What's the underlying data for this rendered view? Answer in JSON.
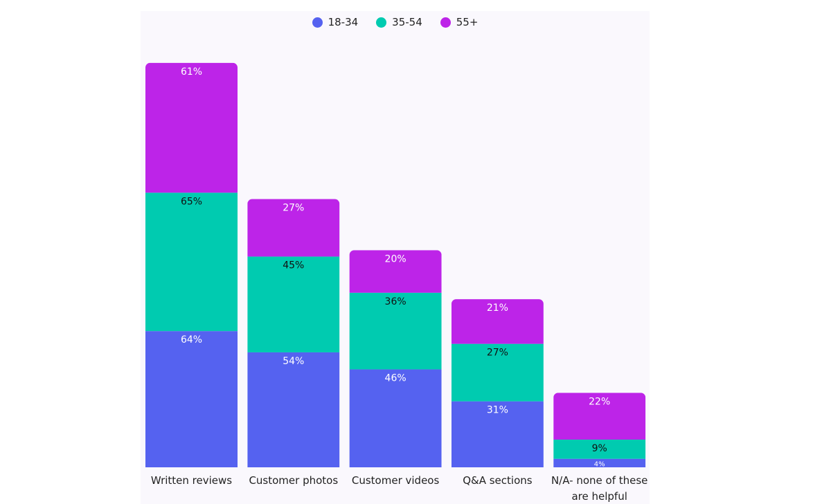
{
  "chart_data": {
    "type": "bar",
    "stacked": true,
    "categories": [
      "Written reviews",
      "Customer photos",
      "Customer videos",
      "Q&A sections",
      "N/A- none of these are helpful"
    ],
    "category_lines": [
      [
        "Written reviews"
      ],
      [
        "Customer photos"
      ],
      [
        "Customer videos"
      ],
      [
        "Q&A sections"
      ],
      [
        "N/A- none of these",
        "are helpful"
      ]
    ],
    "series": [
      {
        "name": "18-34",
        "color": "#5562f0",
        "values": [
          64,
          54,
          46,
          31,
          4
        ]
      },
      {
        "name": "35-54",
        "color": "#00cbb0",
        "values": [
          65,
          45,
          36,
          27,
          9
        ]
      },
      {
        "name": "55+",
        "color": "#bd24e8",
        "values": [
          61,
          27,
          20,
          21,
          22
        ]
      }
    ],
    "value_suffix": "%",
    "legend_position": "top-center",
    "grid": false
  }
}
